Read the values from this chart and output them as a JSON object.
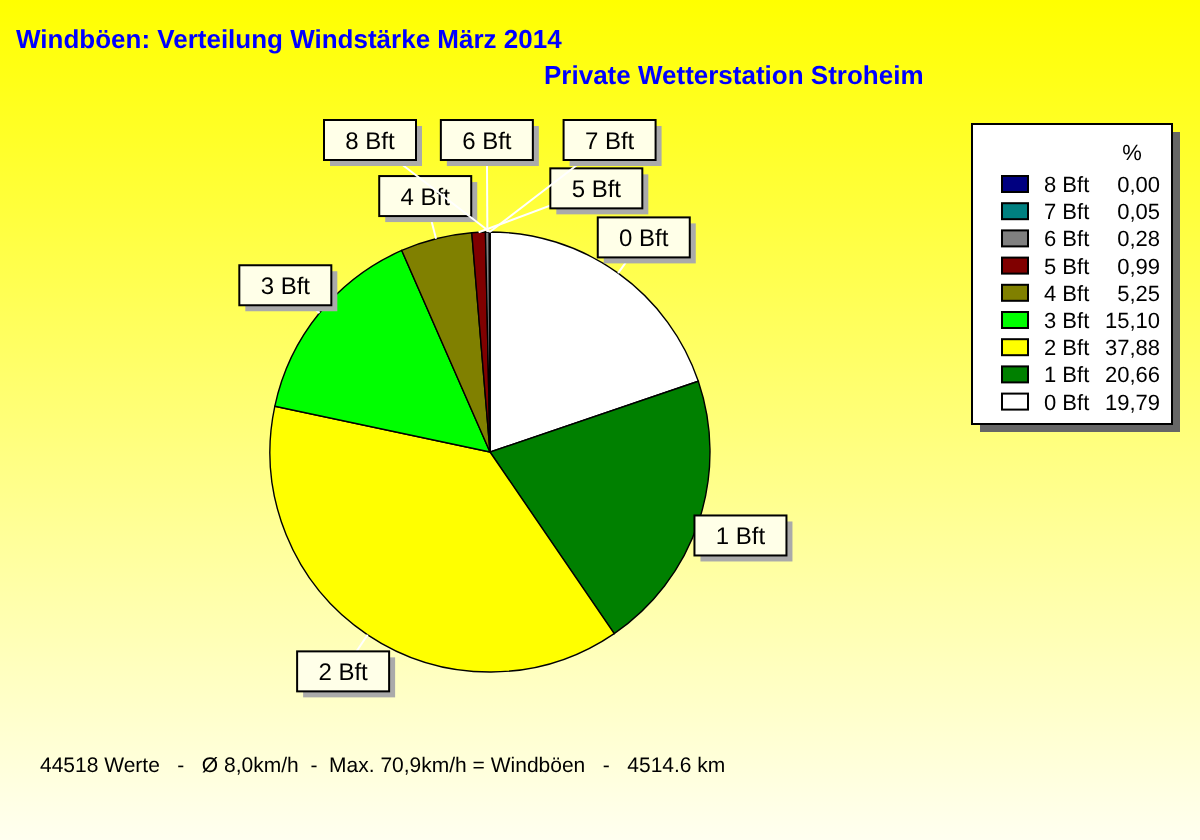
{
  "chart_data": {
    "type": "pie",
    "title": "Windböen: Verteilung Windstärke  März 2014",
    "subtitle": "Private Wetterstation Stroheim",
    "categories": [
      "0 Bft",
      "1 Bft",
      "2 Bft",
      "3 Bft",
      "4 Bft",
      "5 Bft",
      "6 Bft",
      "7 Bft",
      "8 Bft"
    ],
    "values": [
      19.79,
      20.66,
      37.88,
      15.1,
      5.25,
      0.99,
      0.28,
      0.05,
      0.0
    ],
    "value_labels": [
      "19,79",
      "20,66",
      "37,88",
      "15,10",
      "5,25",
      "0,99",
      "0,28",
      "0,05",
      "0,00"
    ],
    "colors": [
      "#ffffff",
      "#008000",
      "#ffff00",
      "#00ff00",
      "#808000",
      "#800000",
      "#808080",
      "#008080",
      "#000080"
    ],
    "legend": "right",
    "legend_title": "%",
    "annotations": [
      "44518 Werte   -   Ø 8,0km/h  -  Max. 70,9km/h = Windböen   -   4514.6 km"
    ]
  }
}
